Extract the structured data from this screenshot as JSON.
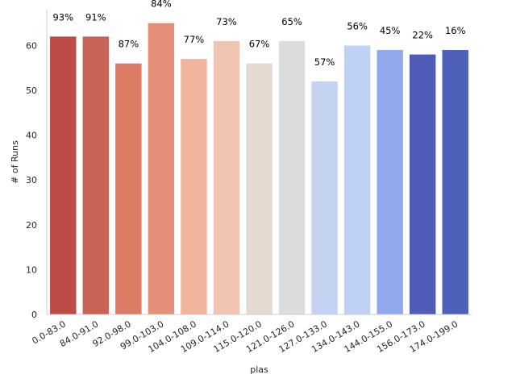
{
  "chart_data": {
    "type": "bar",
    "xlabel": "plas",
    "ylabel": "# of Runs",
    "ylim": [
      0,
      68
    ],
    "yticks": [
      0,
      10,
      20,
      30,
      40,
      50,
      60
    ],
    "grid": false,
    "categories": [
      "0.0-83.0",
      "84.0-91.0",
      "92.0-98.0",
      "99.0-103.0",
      "104.0-108.0",
      "109.0-114.0",
      "115.0-120.0",
      "121.0-126.0",
      "127.0-133.0",
      "134.0-143.0",
      "144.0-155.0",
      "156.0-173.0",
      "174.0-199.0"
    ],
    "values": [
      62,
      62,
      56,
      65,
      57,
      61,
      56,
      61,
      52,
      60,
      59,
      58,
      59
    ],
    "data_labels": [
      "93%",
      "91%",
      "87%",
      "84%",
      "77%",
      "73%",
      "67%",
      "65%",
      "57%",
      "56%",
      "45%",
      "22%",
      "16%"
    ],
    "bar_colors": [
      "#bd4c48",
      "#c96355",
      "#da7b64",
      "#e49078",
      "#efb49b",
      "#f0c6b3",
      "#e5d8d1",
      "#dcdcdc",
      "#c4d3f1",
      "#bfd2f6",
      "#8fa9ec",
      "#4e5cb7",
      "#4f60b8"
    ]
  }
}
